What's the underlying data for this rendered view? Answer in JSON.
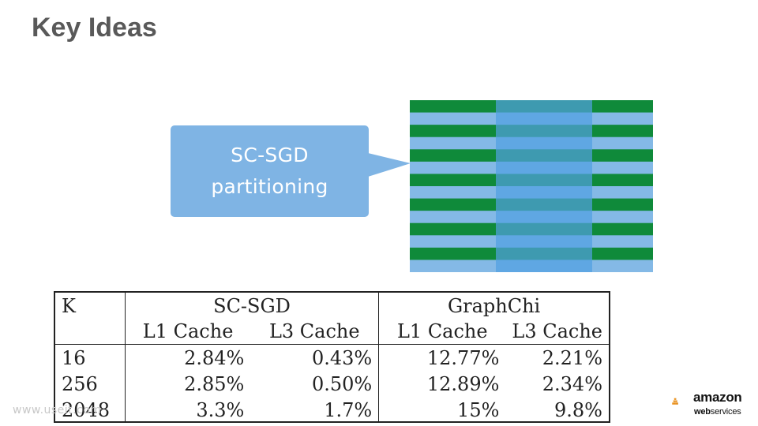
{
  "slide": {
    "title": "Key Ideas"
  },
  "callout": {
    "line1": "SC-SGD",
    "line2": "partitioning",
    "fill_color": "#7fb4e4"
  },
  "partition_graphic": {
    "row_colors": [
      "#0f8a3a",
      "#84b9e6"
    ],
    "middle_block_colors": [
      "#3e9ab0",
      "#5fa7e3"
    ],
    "stripe_pairs": 7
  },
  "table": {
    "header_group": [
      "K",
      "SC-SGD",
      "GraphChi"
    ],
    "header_sub": [
      "",
      "L1 Cache",
      "L3 Cache",
      "L1 Cache",
      "L3 Cache"
    ],
    "rows": [
      [
        "16",
        "2.84%",
        "0.43%",
        "12.77%",
        "2.21%"
      ],
      [
        "256",
        "2.85%",
        "0.50%",
        "12.89%",
        "2.34%"
      ],
      [
        "2048",
        "3.3%",
        "1.7%",
        "15%",
        "9.8%"
      ]
    ]
  },
  "watermark": {
    "text": "www.useit.com"
  },
  "logo": {
    "line1": "amazon",
    "line2_bold": "web",
    "line2_rest": "services",
    "icon": "aws-cubes-icon",
    "accent_color": "#f29111"
  }
}
